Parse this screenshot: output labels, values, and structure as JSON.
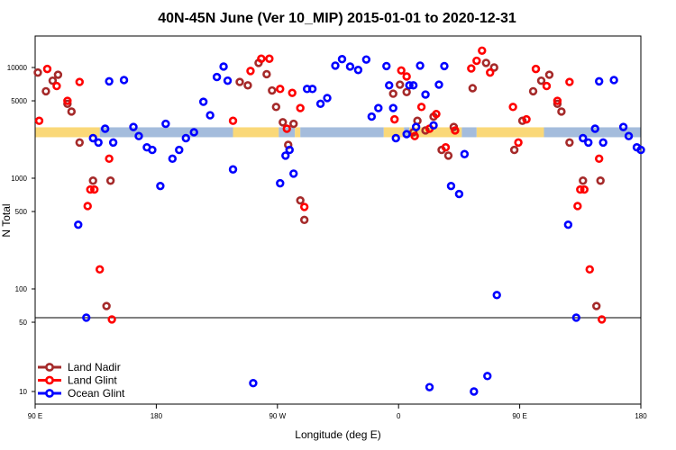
{
  "chart_data": {
    "type": "scatter",
    "title": "40N-45N June (Ver 10_MIP)   2015-01-01 to 2020-12-31",
    "xlabel": "Longitude (deg E)",
    "ylabel": "N Total",
    "xlim": [
      90,
      540
    ],
    "y_scale": "log",
    "y_axis_break_at": 50,
    "x_ticks": [
      {
        "value": 90,
        "label": "90 E"
      },
      {
        "value": 180,
        "label": "180"
      },
      {
        "value": 270,
        "label": "90 W"
      },
      {
        "value": 360,
        "label": "0"
      },
      {
        "value": 450,
        "label": "90 E"
      },
      {
        "value": 540,
        "label": "180"
      }
    ],
    "y_ticks": [
      {
        "value": 10000,
        "label": "10000"
      },
      {
        "value": 5000,
        "label": "5000"
      },
      {
        "value": 1000,
        "label": "1000"
      },
      {
        "value": 500,
        "label": "500"
      },
      {
        "value": 100,
        "label": "100"
      },
      {
        "value": 50,
        "label": "50"
      },
      {
        "value": 10,
        "label": "10"
      }
    ],
    "surface_strip": {
      "y_value": 2600,
      "segments": [
        {
          "x0": 90,
          "x1": 138,
          "kind": "land"
        },
        {
          "x0": 138,
          "x1": 237,
          "kind": "ocean"
        },
        {
          "x0": 237,
          "x1": 271,
          "kind": "land"
        },
        {
          "x0": 271,
          "x1": 283,
          "kind": "ocean"
        },
        {
          "x0": 283,
          "x1": 287,
          "kind": "land"
        },
        {
          "x0": 287,
          "x1": 349,
          "kind": "ocean"
        },
        {
          "x0": 349,
          "x1": 364,
          "kind": "land"
        },
        {
          "x0": 364,
          "x1": 368,
          "kind": "ocean"
        },
        {
          "x0": 368,
          "x1": 407,
          "kind": "land"
        },
        {
          "x0": 407,
          "x1": 418,
          "kind": "ocean"
        },
        {
          "x0": 418,
          "x1": 468,
          "kind": "land"
        },
        {
          "x0": 468,
          "x1": 540,
          "kind": "ocean"
        }
      ],
      "colors": {
        "land": "#fad878",
        "ocean": "#a4bcdc"
      }
    },
    "series": [
      {
        "name": "Land Nadir",
        "color": "#a52a2a",
        "points": [
          [
            92,
            9000
          ],
          [
            98,
            6100
          ],
          [
            103,
            7600
          ],
          [
            107,
            8600
          ],
          [
            114,
            4700
          ],
          [
            117,
            4000
          ],
          [
            123,
            2100
          ],
          [
            133,
            950
          ],
          [
            143,
            70
          ],
          [
            146,
            950
          ],
          [
            242,
            7400
          ],
          [
            248,
            6900
          ],
          [
            256,
            11000
          ],
          [
            262,
            8700
          ],
          [
            266,
            6200
          ],
          [
            269,
            4400
          ],
          [
            274,
            3200
          ],
          [
            278,
            2000
          ],
          [
            282,
            3100
          ],
          [
            287,
            630
          ],
          [
            290,
            420
          ],
          [
            356,
            5800
          ],
          [
            361,
            7000
          ],
          [
            366,
            6000
          ],
          [
            371,
            2600
          ],
          [
            374,
            3300
          ],
          [
            380,
            2700
          ],
          [
            386,
            3600
          ],
          [
            392,
            1800
          ],
          [
            397,
            1600
          ],
          [
            401,
            2900
          ],
          [
            415,
            6500
          ],
          [
            425,
            11000
          ],
          [
            431,
            10000
          ],
          [
            446,
            1800
          ],
          [
            452,
            3300
          ],
          [
            460,
            6100
          ],
          [
            466,
            7600
          ],
          [
            472,
            8600
          ],
          [
            478,
            4700
          ],
          [
            481,
            4000
          ],
          [
            487,
            2100
          ],
          [
            497,
            950
          ],
          [
            507,
            70
          ],
          [
            510,
            950
          ]
        ]
      },
      {
        "name": "Land Glint",
        "color": "#ff0000",
        "points": [
          [
            93,
            3300
          ],
          [
            99,
            9700
          ],
          [
            106,
            6800
          ],
          [
            114,
            5000
          ],
          [
            123,
            7400
          ],
          [
            129,
            560
          ],
          [
            131,
            790
          ],
          [
            134,
            790
          ],
          [
            138,
            150
          ],
          [
            145,
            1500
          ],
          [
            147,
            53
          ],
          [
            237,
            3300
          ],
          [
            250,
            9300
          ],
          [
            258,
            12000
          ],
          [
            264,
            12000
          ],
          [
            272,
            6400
          ],
          [
            277,
            2800
          ],
          [
            281,
            5900
          ],
          [
            287,
            4300
          ],
          [
            290,
            550
          ],
          [
            357,
            3400
          ],
          [
            362,
            9400
          ],
          [
            366,
            8300
          ],
          [
            372,
            2400
          ],
          [
            377,
            4400
          ],
          [
            383,
            2800
          ],
          [
            388,
            3800
          ],
          [
            395,
            1900
          ],
          [
            402,
            2700
          ],
          [
            414,
            9800
          ],
          [
            418,
            11500
          ],
          [
            422,
            14200
          ],
          [
            428,
            9000
          ],
          [
            445,
            4400
          ],
          [
            449,
            2100
          ],
          [
            455,
            3400
          ],
          [
            462,
            9700
          ],
          [
            470,
            6800
          ],
          [
            478,
            5000
          ],
          [
            487,
            7400
          ],
          [
            493,
            560
          ],
          [
            495,
            790
          ],
          [
            498,
            790
          ],
          [
            502,
            150
          ],
          [
            509,
            1500
          ],
          [
            511,
            53
          ]
        ]
      },
      {
        "name": "Ocean Glint",
        "color": "#0000ff",
        "points": [
          [
            122,
            380
          ],
          [
            128,
            55
          ],
          [
            133,
            2300
          ],
          [
            137,
            2100
          ],
          [
            142,
            2800
          ],
          [
            145,
            7500
          ],
          [
            148,
            2100
          ],
          [
            156,
            7700
          ],
          [
            163,
            2900
          ],
          [
            167,
            2400
          ],
          [
            173,
            1900
          ],
          [
            177,
            1800
          ],
          [
            183,
            850
          ],
          [
            187,
            3100
          ],
          [
            192,
            1500
          ],
          [
            197,
            1800
          ],
          [
            202,
            2300
          ],
          [
            208,
            2600
          ],
          [
            215,
            4900
          ],
          [
            220,
            3700
          ],
          [
            225,
            8200
          ],
          [
            230,
            10200
          ],
          [
            233,
            7600
          ],
          [
            237,
            1200
          ],
          [
            252,
            12
          ],
          [
            272,
            900
          ],
          [
            276,
            1600
          ],
          [
            279,
            1800
          ],
          [
            282,
            1100
          ],
          [
            292,
            6400
          ],
          [
            296,
            6400
          ],
          [
            302,
            4700
          ],
          [
            307,
            5300
          ],
          [
            313,
            10400
          ],
          [
            318,
            11900
          ],
          [
            324,
            10200
          ],
          [
            330,
            9500
          ],
          [
            336,
            11800
          ],
          [
            340,
            3600
          ],
          [
            345,
            4300
          ],
          [
            351,
            10300
          ],
          [
            353,
            6900
          ],
          [
            356,
            4300
          ],
          [
            358,
            2300
          ],
          [
            366,
            2500
          ],
          [
            368,
            6900
          ],
          [
            371,
            6900
          ],
          [
            373,
            2900
          ],
          [
            376,
            10400
          ],
          [
            380,
            5700
          ],
          [
            383,
            11
          ],
          [
            386,
            3000
          ],
          [
            390,
            7000
          ],
          [
            394,
            10300
          ],
          [
            399,
            850
          ],
          [
            405,
            720
          ],
          [
            409,
            1650
          ],
          [
            416,
            10
          ],
          [
            426,
            14
          ],
          [
            433,
            88
          ],
          [
            486,
            380
          ],
          [
            492,
            55
          ],
          [
            497,
            2300
          ],
          [
            501,
            2100
          ],
          [
            506,
            2800
          ],
          [
            509,
            7500
          ],
          [
            512,
            2100
          ],
          [
            520,
            7700
          ],
          [
            527,
            2900
          ],
          [
            531,
            2400
          ],
          [
            537,
            1900
          ],
          [
            540,
            1800
          ]
        ]
      }
    ],
    "legend": {
      "position": "bottom-left",
      "entries": [
        {
          "label": "Land Nadir",
          "color": "#a52a2a"
        },
        {
          "label": "Land Glint",
          "color": "#ff0000"
        },
        {
          "label": "Ocean Glint",
          "color": "#0000ff"
        }
      ]
    }
  }
}
